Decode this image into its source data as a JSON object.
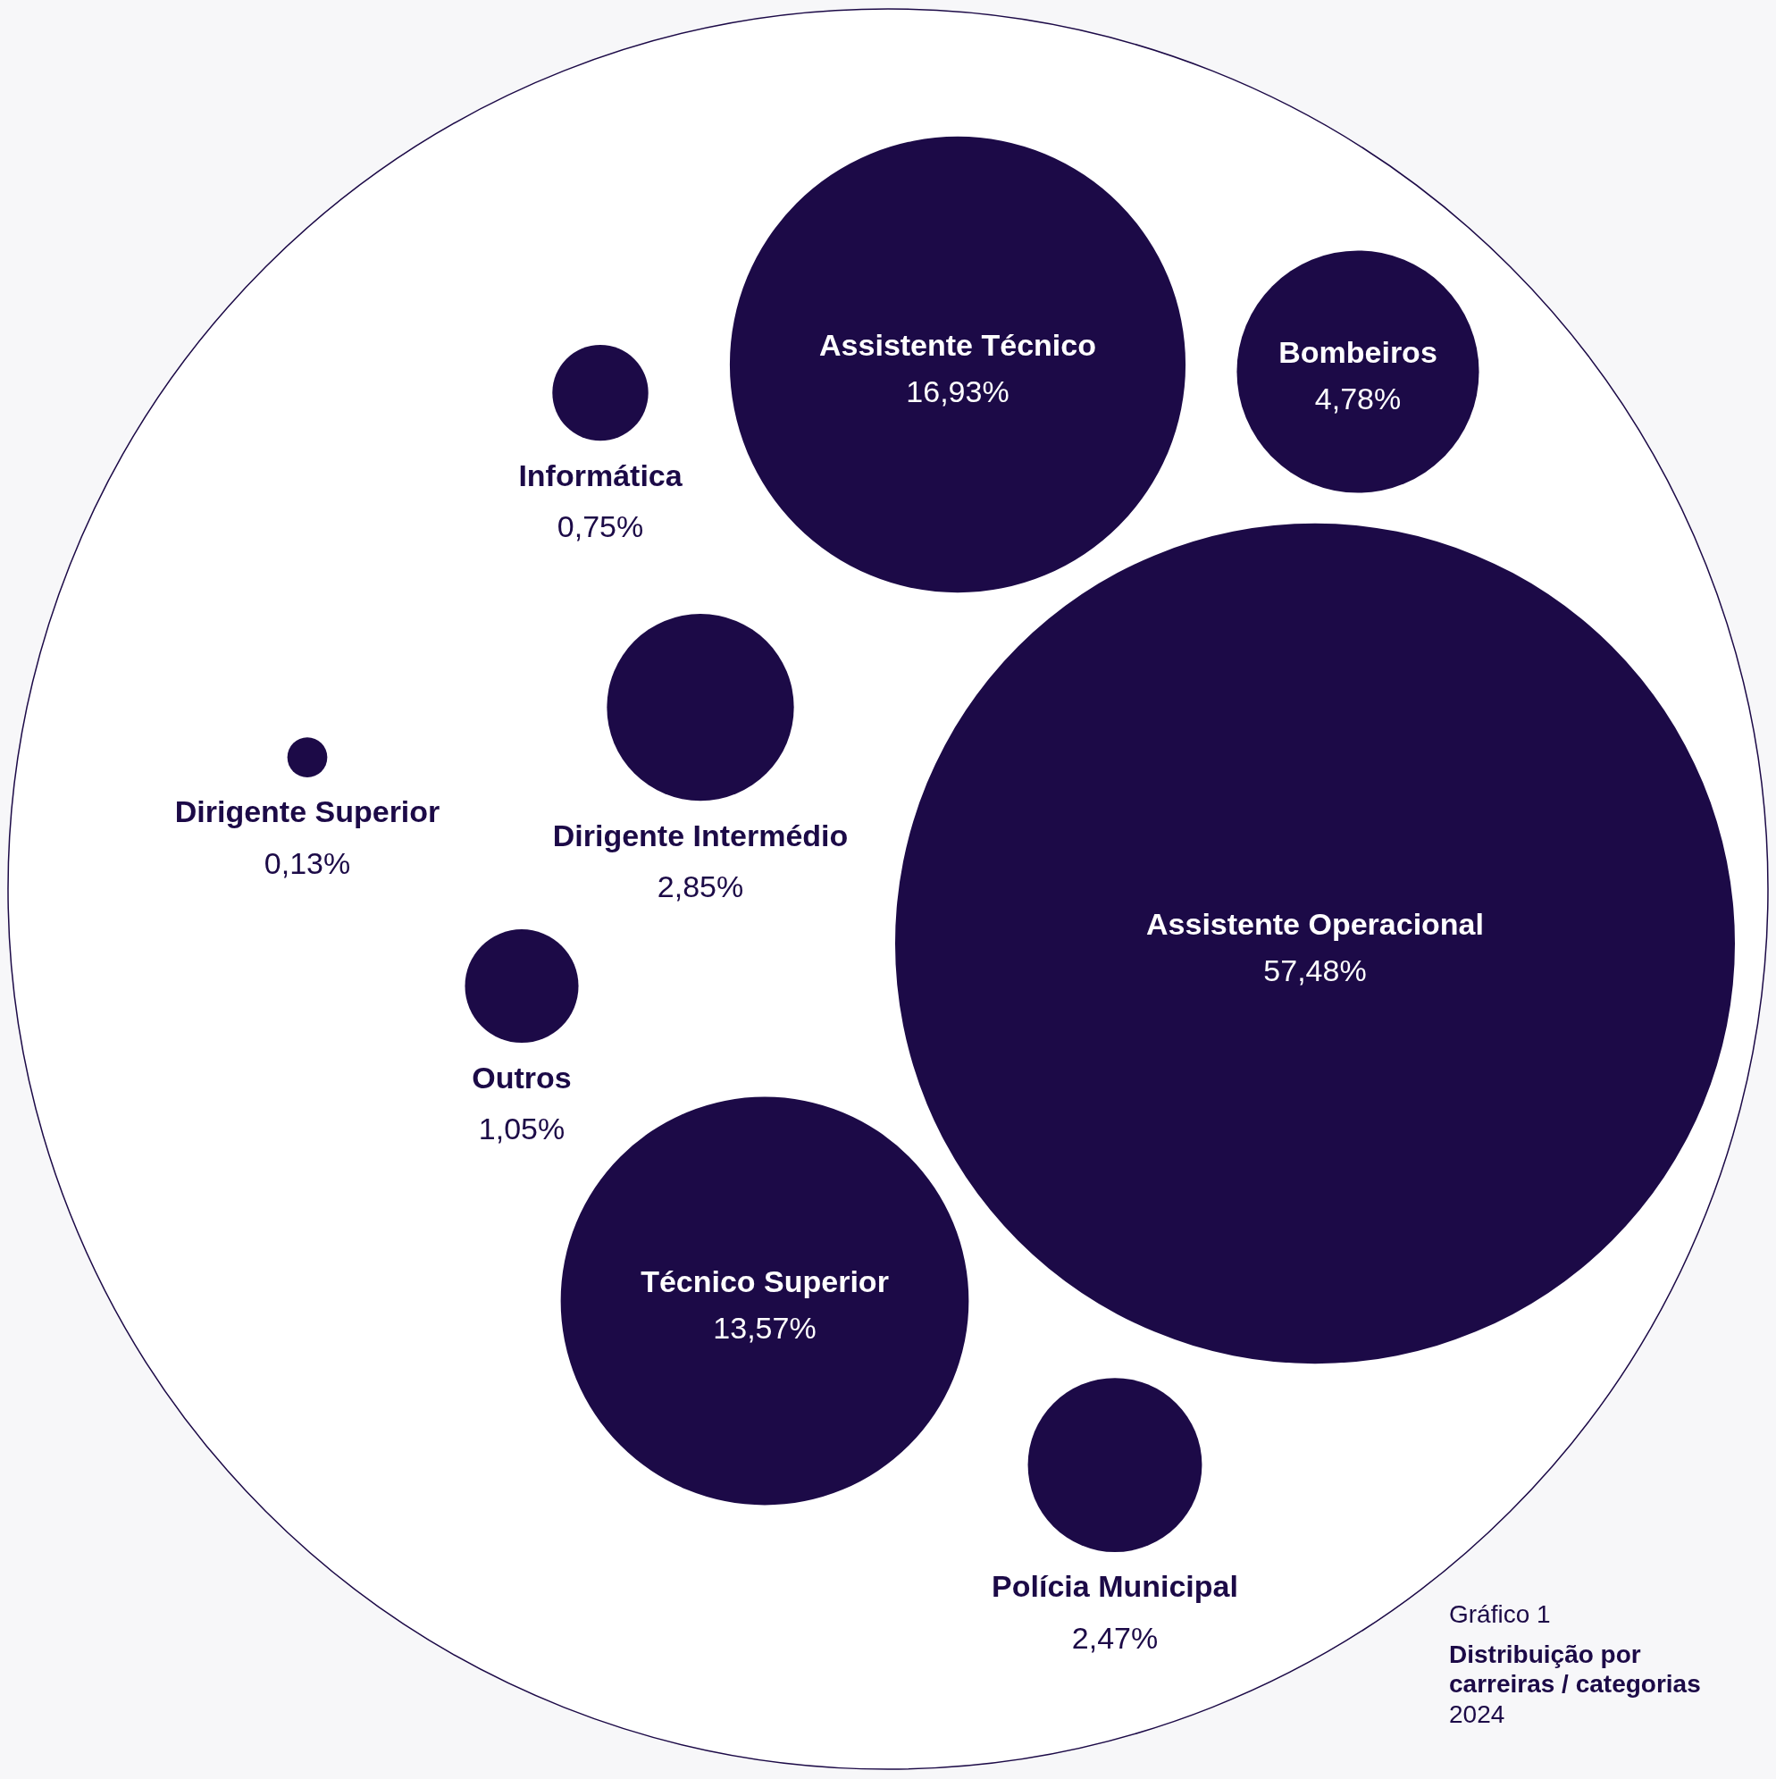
{
  "chart_data": {
    "type": "other",
    "title": "Distribuição por carreiras / categorias",
    "subtitle": "2024",
    "annotations": [
      "Gráfico 1"
    ],
    "categories": [
      "Assistente Operacional",
      "Assistente Técnico",
      "Técnico Superior",
      "Bombeiros",
      "Dirigente Intermédio",
      "Polícia Municipal",
      "Outros",
      "Informática",
      "Dirigente Superior"
    ],
    "values": [
      57.48,
      16.93,
      13.57,
      4.78,
      2.85,
      2.47,
      1.05,
      0.75,
      0.13
    ],
    "value_labels": [
      "57,48%",
      "16,93%",
      "13,57%",
      "4,78%",
      "2,85%",
      "2,47%",
      "1,05%",
      "0,75%",
      "0,13%"
    ],
    "color": "#1c0a47"
  }
}
